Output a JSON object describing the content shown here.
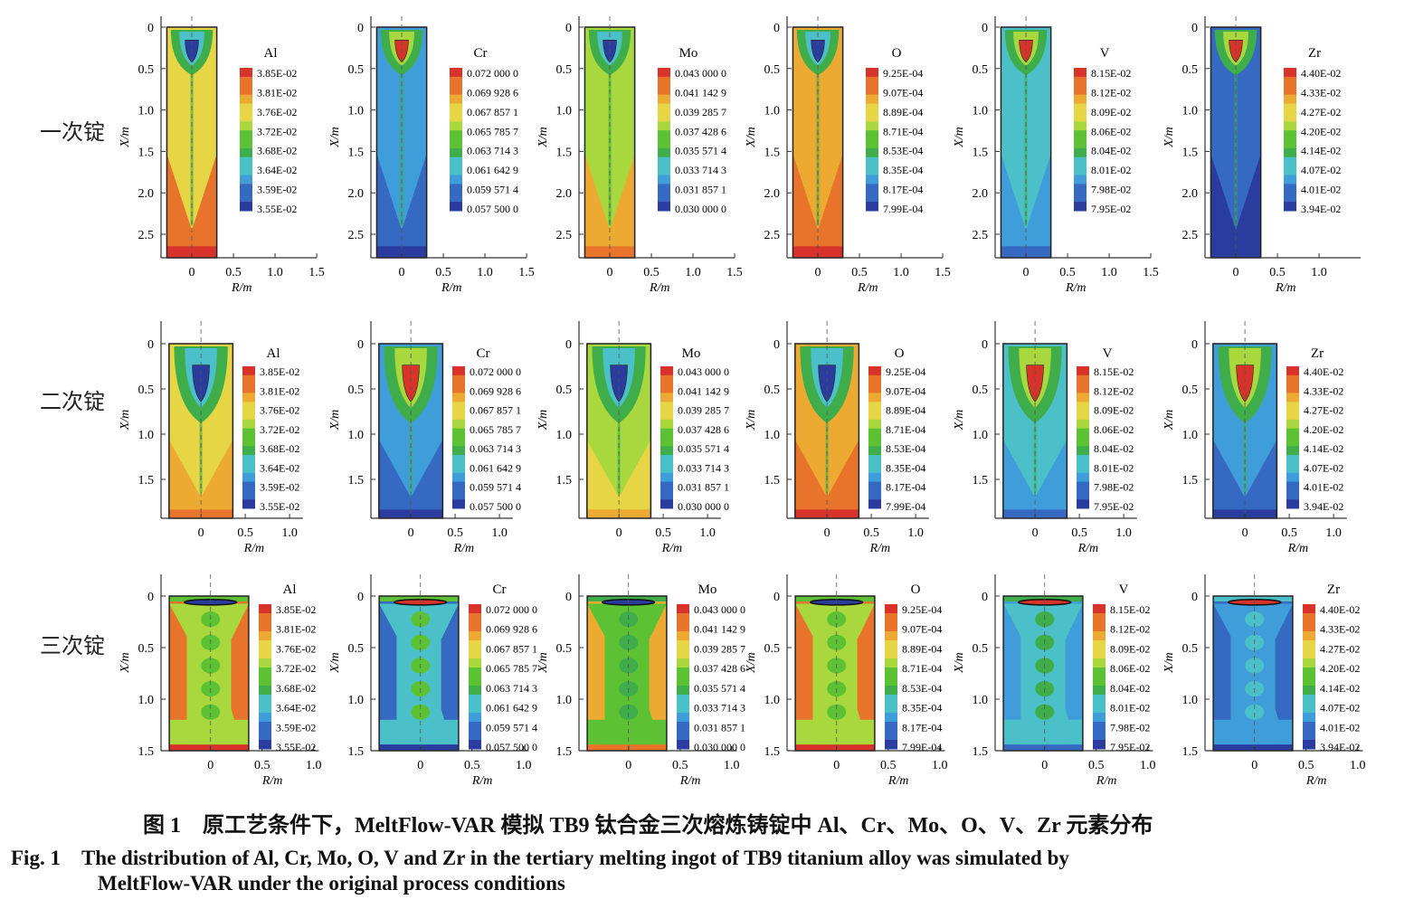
{
  "row_labels": [
    "一次锭",
    "二次锭",
    "三次锭"
  ],
  "caption": {
    "cn": "图 1　原工艺条件下，MeltFlow-VAR 模拟 TB9 钛合金三次熔炼铸锭中 Al、Cr、Mo、O、V、Zr 元素分布",
    "en_line1": "Fig. 1　The distribution of Al, Cr, Mo, O, V and Zr in the tertiary melting ingot of TB9 titanium alloy was simulated by",
    "en_line2": "MeltFlow-VAR under the original process conditions"
  },
  "colormap": [
    "#2a3c9e",
    "#3569c2",
    "#3f9ed9",
    "#4cc0c8",
    "#3fae4a",
    "#5cc234",
    "#a8d83e",
    "#e6d544",
    "#ecaa32",
    "#e7742a",
    "#d8332a"
  ],
  "legends": {
    "Al": [
      "3.85E-02",
      "3.81E-02",
      "3.76E-02",
      "3.72E-02",
      "3.68E-02",
      "3.64E-02",
      "3.59E-02",
      "3.55E-02"
    ],
    "Cr": [
      "0.072 000 0",
      "0.069 928 6",
      "0.067 857 1",
      "0.065 785 7",
      "0.063 714 3",
      "0.061 642 9",
      "0.059 571 4",
      "0.057 500 0"
    ],
    "Mo": [
      "0.043 000 0",
      "0.041 142 9",
      "0.039 285 7",
      "0.037 428 6",
      "0.035 571 4",
      "0.033 714 3",
      "0.031 857 1",
      "0.030 000 0"
    ],
    "O": [
      "9.25E-04",
      "9.07E-04",
      "8.89E-04",
      "8.71E-04",
      "8.53E-04",
      "8.35E-04",
      "8.17E-04",
      "7.99E-04"
    ],
    "V": [
      "8.15E-02",
      "8.12E-02",
      "8.09E-02",
      "8.06E-02",
      "8.04E-02",
      "8.01E-02",
      "7.98E-02",
      "7.95E-02"
    ],
    "Zr": [
      "4.40E-02",
      "4.33E-02",
      "4.27E-02",
      "4.20E-02",
      "4.14E-02",
      "4.07E-02",
      "4.01E-02",
      "3.94E-02"
    ]
  },
  "chart_data": {
    "type": "heatmap",
    "xlabel": "R/m",
    "ylabel": "X/m",
    "elements": [
      "Al",
      "Cr",
      "Mo",
      "O",
      "V",
      "Zr"
    ],
    "rows": [
      {
        "label": "一次锭",
        "yticks": [
          "0",
          "0.5",
          "1.0",
          "1.5",
          "2.0",
          "2.5"
        ],
        "xticks": [
          "0",
          "0.5",
          "1.0",
          "1.5"
        ],
        "ylim": [
          0,
          2.8
        ],
        "fields": [
          {
            "element": "Al",
            "body": 7,
            "lower": 9,
            "bottom": 10,
            "pool": 4,
            "core": 0
          },
          {
            "element": "Cr",
            "body": 2,
            "lower": 1,
            "bottom": 0,
            "pool": 4,
            "core": 10
          },
          {
            "element": "Mo",
            "body": 6,
            "lower": 8,
            "bottom": 9,
            "pool": 4,
            "core": 0
          },
          {
            "element": "O",
            "body": 8,
            "lower": 9,
            "bottom": 10,
            "pool": 4,
            "core": 0
          },
          {
            "element": "V",
            "body": 3,
            "lower": 2,
            "bottom": 1,
            "pool": 4,
            "core": 10
          },
          {
            "element": "Zr",
            "body": 1,
            "lower": 0,
            "bottom": 0,
            "pool": 4,
            "core": 10
          }
        ]
      },
      {
        "label": "二次锭",
        "yticks": [
          "0",
          "0.5",
          "1.0",
          "1.5"
        ],
        "xticks": [
          "0",
          "0.5",
          "1.0"
        ],
        "ylim": [
          0,
          1.93
        ],
        "fields": [
          {
            "element": "Al",
            "body": 7,
            "lower": 8,
            "bottom": 9,
            "pool": 4,
            "core": 0
          },
          {
            "element": "Cr",
            "body": 2,
            "lower": 1,
            "bottom": 0,
            "pool": 4,
            "core": 10
          },
          {
            "element": "Mo",
            "body": 6,
            "lower": 7,
            "bottom": 8,
            "pool": 4,
            "core": 0
          },
          {
            "element": "O",
            "body": 8,
            "lower": 9,
            "bottom": 10,
            "pool": 4,
            "core": 0
          },
          {
            "element": "V",
            "body": 3,
            "lower": 2,
            "bottom": 1,
            "pool": 4,
            "core": 10
          },
          {
            "element": "Zr",
            "body": 2,
            "lower": 1,
            "bottom": 0,
            "pool": 4,
            "core": 10
          }
        ]
      },
      {
        "label": "三次锭",
        "yticks": [
          "0",
          "0.5",
          "1.0",
          "1.5"
        ],
        "xticks": [
          "0",
          "0.5",
          "1.0"
        ],
        "ylim": [
          0,
          1.5
        ],
        "fields": [
          {
            "element": "Al",
            "body": 6,
            "lower": 9,
            "bottom": 10,
            "pool": 5,
            "core": 0
          },
          {
            "element": "Cr",
            "body": 3,
            "lower": 1,
            "bottom": 0,
            "pool": 5,
            "core": 10
          },
          {
            "element": "Mo",
            "body": 5,
            "lower": 8,
            "bottom": 9,
            "pool": 4,
            "core": 0
          },
          {
            "element": "O",
            "body": 6,
            "lower": 9,
            "bottom": 10,
            "pool": 5,
            "core": 0
          },
          {
            "element": "V",
            "body": 3,
            "lower": 2,
            "bottom": 1,
            "pool": 4,
            "core": 10
          },
          {
            "element": "Zr",
            "body": 2,
            "lower": 1,
            "bottom": 0,
            "pool": 3,
            "core": 10
          }
        ]
      }
    ]
  }
}
